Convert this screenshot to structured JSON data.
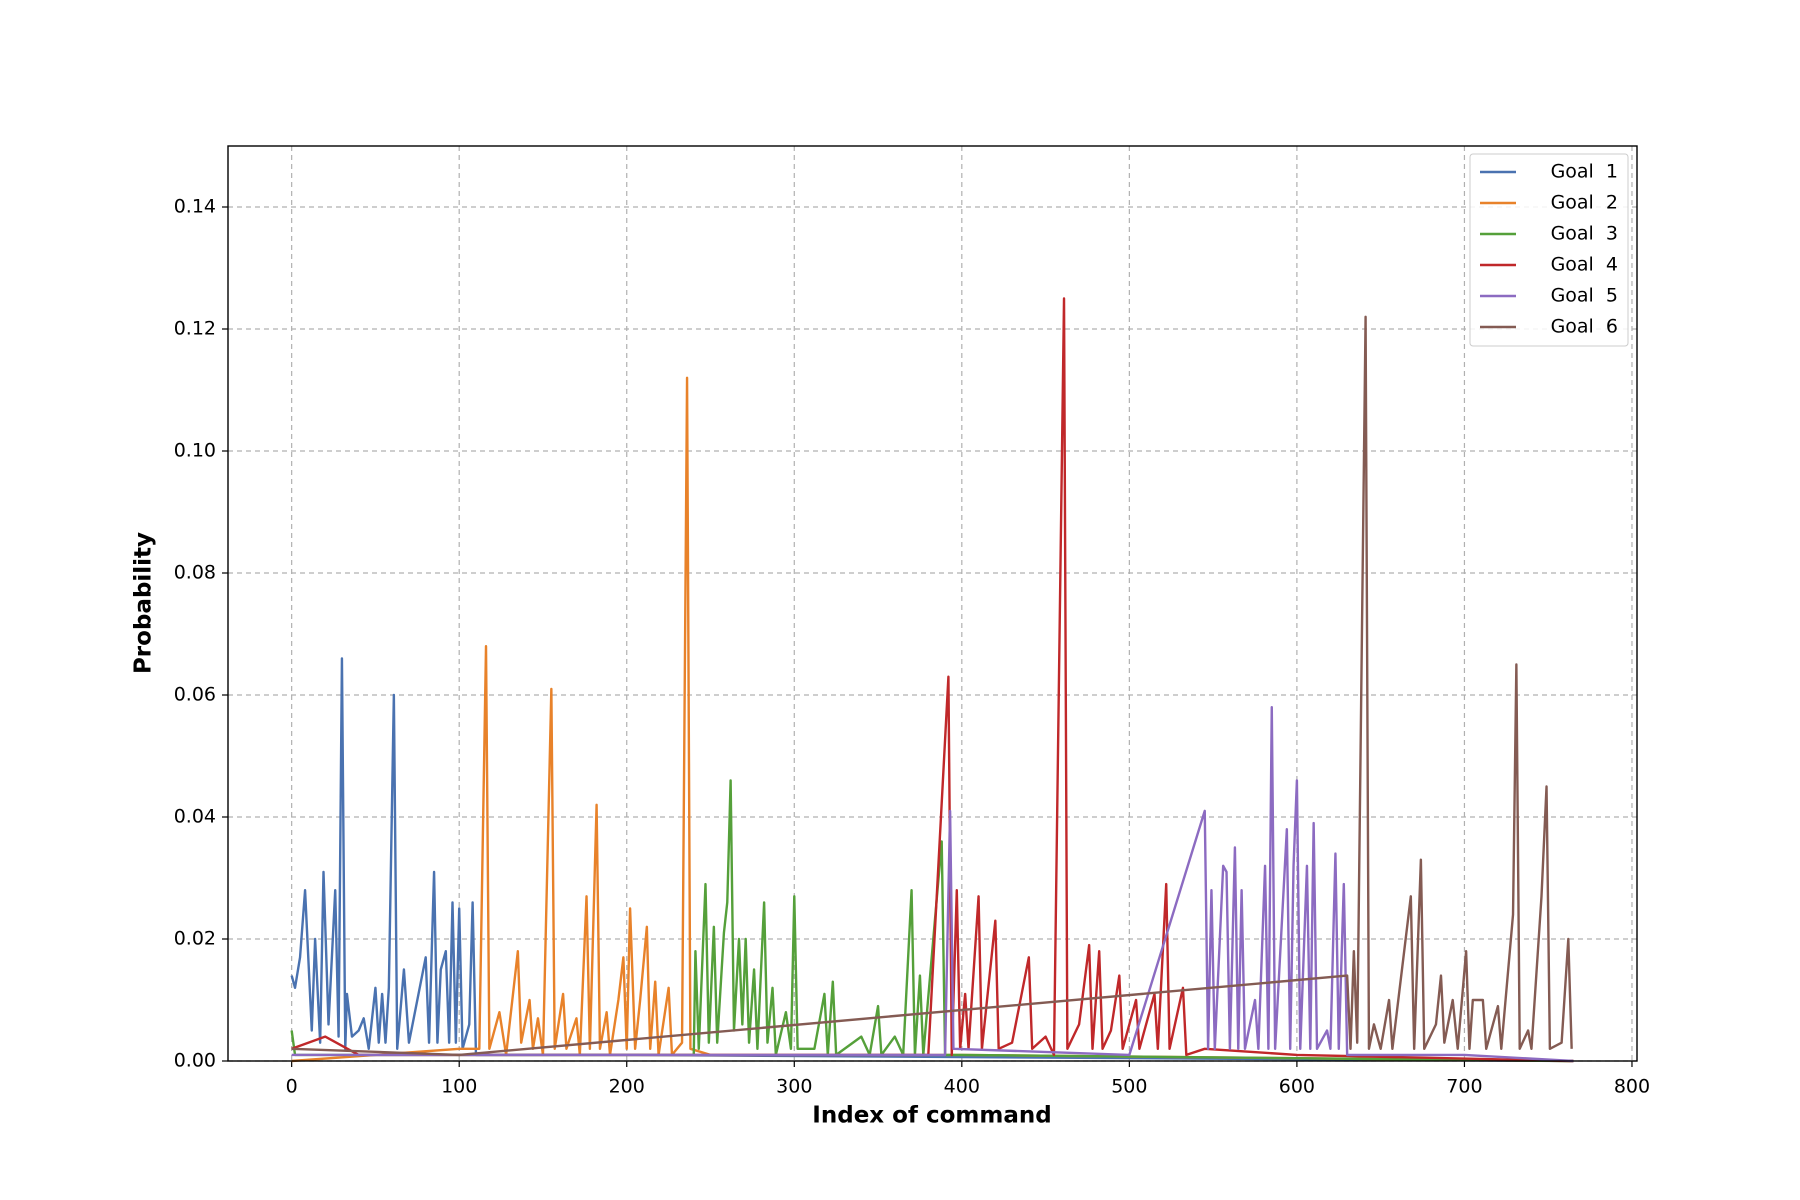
{
  "chart_data": {
    "type": "line",
    "x_label": "Index of command",
    "y_label": "Probability",
    "xlim": [
      -38,
      803
    ],
    "ylim": [
      0,
      0.15
    ],
    "xticks": [
      0,
      100,
      200,
      300,
      400,
      500,
      600,
      700,
      800
    ],
    "yticks": [
      {
        "value": 0,
        "label": "0.00"
      },
      0.02,
      0.04,
      0.06,
      0.08,
      {
        "value": 0.1,
        "label": "0.10"
      },
      0.12,
      0.14
    ],
    "grid": true,
    "legend": "upper right",
    "series": [
      {
        "name": "Goal  1",
        "color": "#4a72b0",
        "x": [
          0,
          2,
          5,
          8,
          12,
          14,
          17,
          19,
          22,
          26,
          28,
          30,
          32,
          33,
          36,
          40,
          43,
          46,
          50,
          52,
          54,
          56,
          58,
          61,
          63,
          67,
          70,
          80,
          82,
          85,
          87,
          89,
          92,
          94,
          96,
          98,
          100,
          102,
          106,
          108,
          110,
          200,
          765
        ],
        "values": [
          0.014,
          0.012,
          0.017,
          0.028,
          0.005,
          0.02,
          0.003,
          0.031,
          0.006,
          0.028,
          0.004,
          0.066,
          0.002,
          0.011,
          0.004,
          0.005,
          0.007,
          0.002,
          0.012,
          0.003,
          0.011,
          0.003,
          0.012,
          0.06,
          0.002,
          0.015,
          0.003,
          0.017,
          0.003,
          0.031,
          0.003,
          0.015,
          0.018,
          0.003,
          0.026,
          0.003,
          0.025,
          0.002,
          0.006,
          0.026,
          0.001,
          0.001,
          0
        ]
      },
      {
        "name": "Goal  2",
        "color": "#e8822a",
        "x": [
          0,
          100,
          112,
          116,
          118,
          124,
          128,
          135,
          137,
          142,
          144,
          147,
          150,
          155,
          157,
          162,
          164,
          170,
          172,
          176,
          178,
          182,
          184,
          188,
          190,
          195,
          198,
          200,
          202,
          205,
          208,
          212,
          214,
          217,
          219,
          225,
          227,
          233,
          236,
          238,
          250,
          400,
          765
        ],
        "values": [
          0,
          0.002,
          0.002,
          0.068,
          0.002,
          0.008,
          0.001,
          0.018,
          0.003,
          0.01,
          0.002,
          0.007,
          0.001,
          0.061,
          0.002,
          0.011,
          0.002,
          0.007,
          0.001,
          0.027,
          0.002,
          0.042,
          0.002,
          0.008,
          0.001,
          0.01,
          0.017,
          0.002,
          0.025,
          0.002,
          0.01,
          0.022,
          0.002,
          0.013,
          0.001,
          0.012,
          0.001,
          0.003,
          0.112,
          0.002,
          0.001,
          0.001,
          0
        ]
      },
      {
        "name": "Goal  3",
        "color": "#55a03a",
        "x": [
          0,
          2,
          240,
          241,
          243,
          247,
          249,
          252,
          254,
          258,
          260,
          262,
          264,
          267,
          269,
          271,
          273,
          276,
          278,
          282,
          284,
          287,
          289,
          295,
          298,
          300,
          302,
          312,
          318,
          320,
          323,
          325,
          340,
          345,
          350,
          352,
          360,
          365,
          370,
          372,
          375,
          377,
          388,
          390,
          400,
          765
        ],
        "values": [
          0.005,
          0.001,
          0.001,
          0.018,
          0.002,
          0.029,
          0.003,
          0.022,
          0.003,
          0.021,
          0.026,
          0.046,
          0.005,
          0.02,
          0.006,
          0.02,
          0.003,
          0.015,
          0.002,
          0.026,
          0.003,
          0.012,
          0.001,
          0.008,
          0.002,
          0.027,
          0.002,
          0.002,
          0.011,
          0.001,
          0.013,
          0.001,
          0.004,
          0.001,
          0.009,
          0.001,
          0.004,
          0.001,
          0.028,
          0.001,
          0.014,
          0.001,
          0.036,
          0.001,
          0.001,
          0
        ]
      },
      {
        "name": "Goal  4",
        "color": "#c0282a",
        "x": [
          0,
          20,
          40,
          380,
          392,
          394,
          397,
          399,
          402,
          404,
          410,
          412,
          420,
          422,
          430,
          440,
          442,
          450,
          455,
          461,
          463,
          470,
          476,
          478,
          482,
          484,
          489,
          494,
          496,
          504,
          506,
          515,
          517,
          522,
          524,
          532,
          534,
          545,
          600,
          765
        ],
        "values": [
          0.002,
          0.004,
          0.001,
          0.001,
          0.063,
          0.001,
          0.028,
          0.002,
          0.011,
          0.002,
          0.027,
          0.002,
          0.023,
          0.002,
          0.003,
          0.017,
          0.002,
          0.004,
          0.001,
          0.125,
          0.002,
          0.006,
          0.019,
          0.002,
          0.018,
          0.002,
          0.005,
          0.014,
          0.002,
          0.01,
          0.002,
          0.011,
          0.002,
          0.029,
          0.002,
          0.012,
          0.001,
          0.002,
          0.001,
          0
        ]
      },
      {
        "name": "Goal  5",
        "color": "#8c6bc1",
        "x": [
          0,
          390,
          393,
          395,
          500,
          545,
          547,
          549,
          551,
          556,
          558,
          560,
          563,
          565,
          567,
          569,
          575,
          577,
          581,
          583,
          585,
          587,
          594,
          596,
          598,
          600,
          602,
          606,
          608,
          610,
          612,
          618,
          620,
          623,
          625,
          628,
          630,
          700,
          765
        ],
        "values": [
          0.001,
          0.001,
          0.041,
          0.002,
          0.001,
          0.041,
          0.002,
          0.028,
          0.002,
          0.032,
          0.031,
          0.002,
          0.035,
          0.002,
          0.028,
          0.002,
          0.01,
          0.002,
          0.032,
          0.002,
          0.058,
          0.002,
          0.038,
          0.002,
          0.032,
          0.046,
          0.002,
          0.032,
          0.002,
          0.039,
          0.002,
          0.005,
          0.002,
          0.034,
          0.002,
          0.029,
          0.001,
          0.001,
          0
        ]
      },
      {
        "name": "Goal  6",
        "color": "#845b53",
        "x": [
          0,
          100,
          630,
          632,
          634,
          636,
          641,
          643,
          646,
          650,
          655,
          657,
          668,
          670,
          674,
          676,
          683,
          686,
          688,
          693,
          696,
          701,
          703,
          705,
          708,
          711,
          713,
          720,
          722,
          729,
          731,
          733,
          738,
          740,
          746,
          749,
          751,
          758,
          762,
          764
        ],
        "values": [
          0.002,
          0.001,
          0.014,
          0.002,
          0.018,
          0.003,
          0.122,
          0.002,
          0.006,
          0.002,
          0.01,
          0.002,
          0.027,
          0.002,
          0.033,
          0.002,
          0.006,
          0.014,
          0.003,
          0.01,
          0.002,
          0.018,
          0.002,
          0.01,
          0.01,
          0.01,
          0.002,
          0.009,
          0.002,
          0.024,
          0.065,
          0.002,
          0.005,
          0.002,
          0.027,
          0.045,
          0.002,
          0.003,
          0.02,
          0.002
        ]
      }
    ]
  }
}
